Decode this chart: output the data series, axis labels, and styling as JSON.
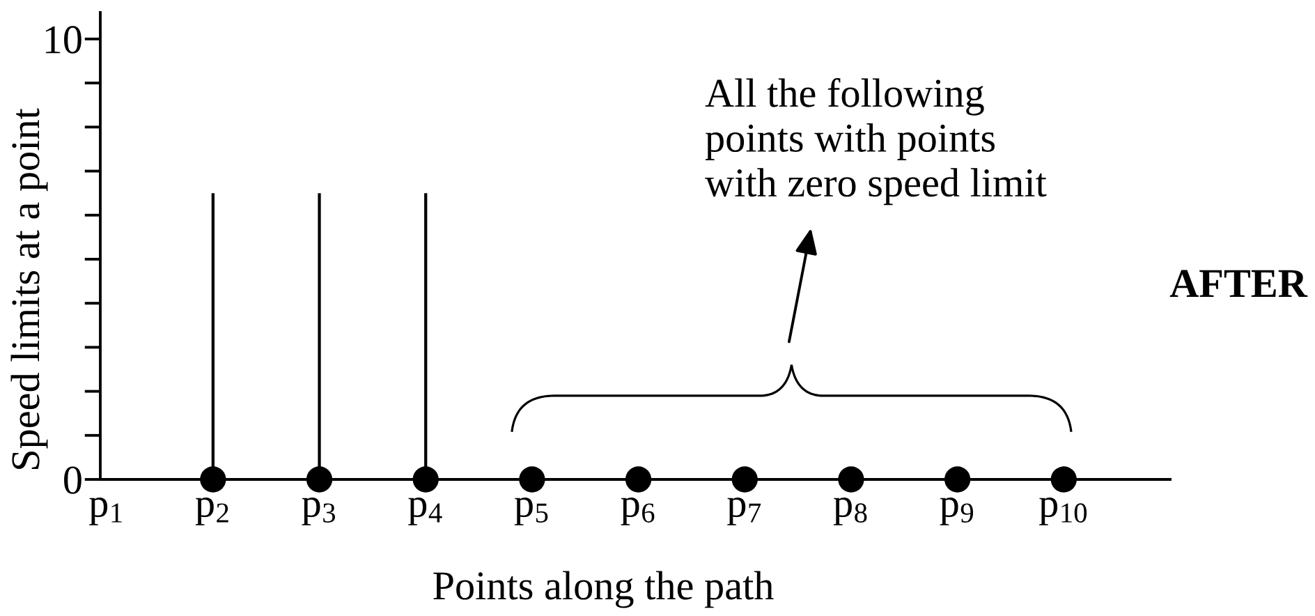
{
  "chart_data": {
    "type": "bar",
    "xlabel": "Points along the path",
    "ylabel": "Speed limits at a point",
    "categories": [
      "p$_{1}$",
      "p$_{2}$",
      "p$_{3}$",
      "p$_{4}$",
      "p$_{5}$",
      "p$_{6}$",
      "p$_{7}$",
      "p$_{8}$",
      "p$_{9}$",
      "p$_{10}$"
    ],
    "series": [
      {
        "color": "#000000",
        "values": [
          null,
          6.5,
          6.5,
          6.5,
          0,
          0,
          0,
          0,
          0,
          0
        ]
      },
      {
        "type": "scatter",
        "color": "#000000",
        "marker": "circle",
        "values": [
          null,
          0,
          0,
          0,
          0,
          0,
          0,
          0,
          0,
          0
        ]
      }
    ],
    "ylim": [
      0,
      10.6
    ],
    "yticks": [
      0,
      {
        "value": 1,
        "label": null
      },
      {
        "value": 2,
        "label": null
      },
      {
        "value": 3,
        "label": null
      },
      {
        "value": 4,
        "label": null
      },
      {
        "value": 5,
        "label": null
      },
      {
        "value": 6,
        "label": null
      },
      {
        "value": 7,
        "label": null
      },
      {
        "value": 8,
        "label": null
      },
      {
        "value": 9,
        "label": null
      },
      10
    ],
    "grid": false,
    "annotations": [
      "All the following\npoints with points\nwith zero speed limit",
      "AFTER"
    ]
  }
}
